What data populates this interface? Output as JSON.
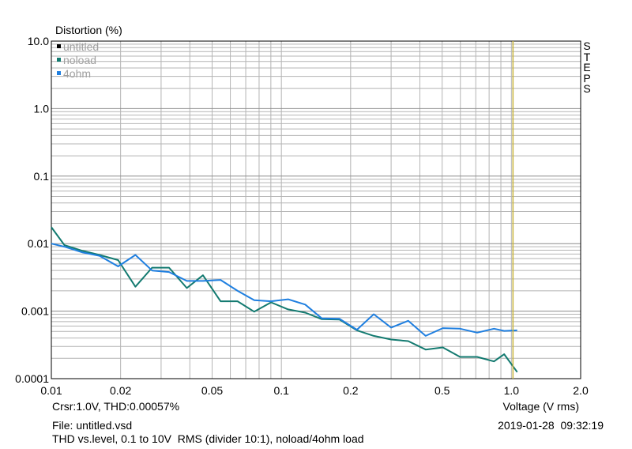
{
  "chart_data": {
    "type": "line",
    "ylabel": "Distortion (%)",
    "xlabel": "Voltage (V rms)",
    "x_scale": "log",
    "y_scale": "log",
    "xlim": [
      0.01,
      2.0
    ],
    "ylim": [
      0.0001,
      10.0
    ],
    "x_ticks": [
      "0.01",
      "0.02",
      "0.05",
      "0.1",
      "0.2",
      "0.5",
      "1.0",
      "2.0"
    ],
    "y_ticks": [
      "10.0",
      "1.0",
      "0.1",
      "0.01",
      "0.001",
      "0.0001"
    ],
    "grid": true,
    "legend_placement": "top-left",
    "right_label": "STEPS",
    "cursor_x": 1.0,
    "cursor_color": "#c8b43c",
    "series": [
      {
        "name": "untitled",
        "color": "#000000",
        "x": [],
        "y": []
      },
      {
        "name": "noload",
        "color": "#137a70",
        "x": [
          0.01,
          0.0114,
          0.0137,
          0.0162,
          0.0195,
          0.0232,
          0.0274,
          0.0325,
          0.0388,
          0.0456,
          0.0544,
          0.0645,
          0.0762,
          0.0902,
          0.107,
          0.127,
          0.15,
          0.179,
          0.213,
          0.252,
          0.3,
          0.356,
          0.424,
          0.503,
          0.598,
          0.71,
          0.84,
          0.93,
          1.06
        ],
        "y": [
          0.0175,
          0.0095,
          0.0078,
          0.0068,
          0.0057,
          0.0023,
          0.0044,
          0.0044,
          0.0022,
          0.0034,
          0.0014,
          0.0014,
          0.00098,
          0.00135,
          0.00106,
          0.00095,
          0.00076,
          0.00075,
          0.00052,
          0.00043,
          0.00038,
          0.00036,
          0.00027,
          0.00029,
          0.00021,
          0.00021,
          0.00018,
          0.00023,
          0.000125
        ]
      },
      {
        "name": "4ohm",
        "color": "#1f7fe0",
        "x": [
          0.01,
          0.0114,
          0.0137,
          0.0162,
          0.0195,
          0.0232,
          0.0274,
          0.0325,
          0.0388,
          0.0456,
          0.0544,
          0.0645,
          0.0762,
          0.0902,
          0.107,
          0.127,
          0.15,
          0.179,
          0.213,
          0.252,
          0.3,
          0.356,
          0.424,
          0.503,
          0.598,
          0.71,
          0.84,
          0.93,
          1.06
        ],
        "y": [
          0.01,
          0.009,
          0.0074,
          0.0066,
          0.0046,
          0.0068,
          0.004,
          0.0038,
          0.0028,
          0.0028,
          0.0029,
          0.002,
          0.00145,
          0.0014,
          0.0015,
          0.00125,
          0.00078,
          0.00077,
          0.00053,
          0.0009,
          0.00057,
          0.00072,
          0.00043,
          0.00056,
          0.00055,
          0.00048,
          0.00055,
          0.00051,
          0.00052
        ]
      }
    ]
  },
  "readout": {
    "cursor": "Crsr:1.0V, THD:0.00057%"
  },
  "footer": {
    "file": "File: untitled.vsd",
    "description": "THD vs.level, 0.1 to 10V  RMS (divider 10:1), noload/4ohm load",
    "timestamp": "2019-01-28  09:32:19"
  }
}
